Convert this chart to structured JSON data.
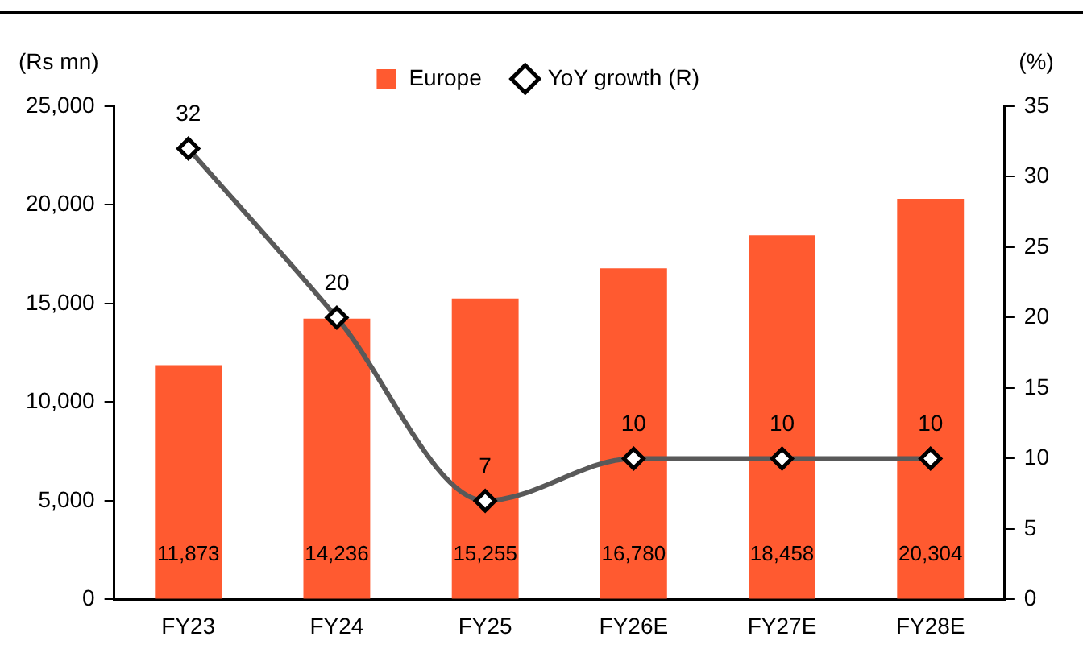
{
  "chart_data": {
    "type": "bar",
    "categories": [
      "FY23",
      "FY24",
      "FY25",
      "FY26E",
      "FY27E",
      "FY28E"
    ],
    "ylabel": "(Rs mn)",
    "y2label": "(%)",
    "series": [
      {
        "name": "Europe",
        "color": "#ff5a30",
        "values": [
          11873,
          14236,
          15255,
          16780,
          18458,
          20304
        ],
        "value_labels": [
          "11,873",
          "14,236",
          "15,255",
          "16,780",
          "18,458",
          "20,304"
        ]
      },
      {
        "name": "YoY growth (R)",
        "type": "line",
        "axis": "y2",
        "color": "#595959",
        "marker": "diamond",
        "values": [
          32,
          20,
          7,
          10,
          10,
          10
        ],
        "value_labels": [
          "32",
          "20",
          "7",
          "10",
          "10",
          "10"
        ]
      }
    ],
    "ylim": [
      0,
      25000
    ],
    "yticks": [
      {
        "value": 0,
        "label": "0"
      },
      {
        "value": 5000,
        "label": "5,000"
      },
      {
        "value": 10000,
        "label": "10,000"
      },
      {
        "value": 15000,
        "label": "15,000"
      },
      {
        "value": 20000,
        "label": "20,000"
      },
      {
        "value": 25000,
        "label": "25,000"
      }
    ],
    "y2lim": [
      0,
      35
    ],
    "y2ticks": [
      0,
      5,
      10,
      15,
      20,
      25,
      30,
      35
    ],
    "grid": false,
    "legend": "top"
  }
}
